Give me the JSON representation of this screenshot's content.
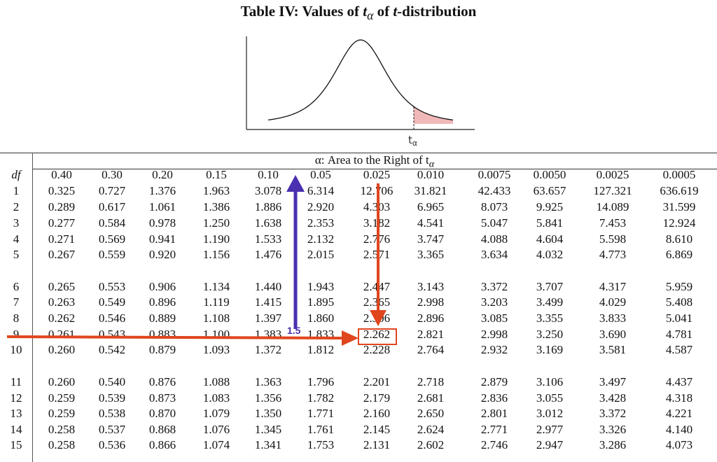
{
  "title": {
    "prefix": "Table IV: Values of ",
    "t": "t",
    "sub": "α",
    "middle": " of ",
    "t2": "t",
    "suffix": "-distribution"
  },
  "graph": {
    "label": "t",
    "label_sub": "α",
    "shade_color": "#f0b8b8"
  },
  "table": {
    "alpha_header": "α: Area to the Right of t",
    "alpha_header_sub": "α",
    "df_label": "df",
    "columns": [
      "0.40",
      "0.30",
      "0.20",
      "0.15",
      "0.10",
      "0.05",
      "0.025",
      "0.010",
      "0.0075",
      "0.0050",
      "0.0025",
      "0.0005"
    ],
    "rows": [
      {
        "df": "1",
        "values": [
          "0.325",
          "0.727",
          "1.376",
          "1.963",
          "3.078",
          "6.314",
          "12.706",
          "31.821",
          "42.433",
          "63.657",
          "127.321",
          "636.619"
        ]
      },
      {
        "df": "2",
        "values": [
          "0.289",
          "0.617",
          "1.061",
          "1.386",
          "1.886",
          "2.920",
          "4.303",
          "6.965",
          "8.073",
          "9.925",
          "14.089",
          "31.599"
        ]
      },
      {
        "df": "3",
        "values": [
          "0.277",
          "0.584",
          "0.978",
          "1.250",
          "1.638",
          "2.353",
          "3.182",
          "4.541",
          "5.047",
          "5.841",
          "7.453",
          "12.924"
        ]
      },
      {
        "df": "4",
        "values": [
          "0.271",
          "0.569",
          "0.941",
          "1.190",
          "1.533",
          "2.132",
          "2.776",
          "3.747",
          "4.088",
          "4.604",
          "5.598",
          "8.610"
        ]
      },
      {
        "df": "5",
        "values": [
          "0.267",
          "0.559",
          "0.920",
          "1.156",
          "1.476",
          "2.015",
          "2.571",
          "3.365",
          "3.634",
          "4.032",
          "4.773",
          "6.869"
        ]
      },
      {
        "df": "6",
        "values": [
          "0.265",
          "0.553",
          "0.906",
          "1.134",
          "1.440",
          "1.943",
          "2.447",
          "3.143",
          "3.372",
          "3.707",
          "4.317",
          "5.959"
        ]
      },
      {
        "df": "7",
        "values": [
          "0.263",
          "0.549",
          "0.896",
          "1.119",
          "1.415",
          "1.895",
          "2.365",
          "2.998",
          "3.203",
          "3.499",
          "4.029",
          "5.408"
        ]
      },
      {
        "df": "8",
        "values": [
          "0.262",
          "0.546",
          "0.889",
          "1.108",
          "1.397",
          "1.860",
          "2.306",
          "2.896",
          "3.085",
          "3.355",
          "3.833",
          "5.041"
        ]
      },
      {
        "df": "9",
        "values": [
          "0.261",
          "0.543",
          "0.883",
          "1.100",
          "1.383",
          "1.833",
          "2.262",
          "2.821",
          "2.998",
          "3.250",
          "3.690",
          "4.781"
        ]
      },
      {
        "df": "10",
        "values": [
          "0.260",
          "0.542",
          "0.879",
          "1.093",
          "1.372",
          "1.812",
          "2.228",
          "2.764",
          "2.932",
          "3.169",
          "3.581",
          "4.587"
        ]
      },
      {
        "df": "11",
        "values": [
          "0.260",
          "0.540",
          "0.876",
          "1.088",
          "1.363",
          "1.796",
          "2.201",
          "2.718",
          "2.879",
          "3.106",
          "3.497",
          "4.437"
        ]
      },
      {
        "df": "12",
        "values": [
          "0.259",
          "0.539",
          "0.873",
          "1.083",
          "1.356",
          "1.782",
          "2.179",
          "2.681",
          "2.836",
          "3.055",
          "3.428",
          "4.318"
        ]
      },
      {
        "df": "13",
        "values": [
          "0.259",
          "0.538",
          "0.870",
          "1.079",
          "1.350",
          "1.771",
          "2.160",
          "2.650",
          "2.801",
          "3.012",
          "3.372",
          "4.221"
        ]
      },
      {
        "df": "14",
        "values": [
          "0.258",
          "0.537",
          "0.868",
          "1.076",
          "1.345",
          "1.761",
          "2.145",
          "2.624",
          "2.771",
          "2.977",
          "3.326",
          "4.140"
        ]
      },
      {
        "df": "15",
        "values": [
          "0.258",
          "0.536",
          "0.866",
          "1.074",
          "1.341",
          "1.753",
          "2.131",
          "2.602",
          "2.746",
          "2.947",
          "3.286",
          "4.073"
        ]
      }
    ]
  },
  "annotations": {
    "blue_arrow_label": "1.5",
    "blue_color": "#4a2fb0",
    "red_color": "#e0461e",
    "highlighted_value": "2.262"
  }
}
